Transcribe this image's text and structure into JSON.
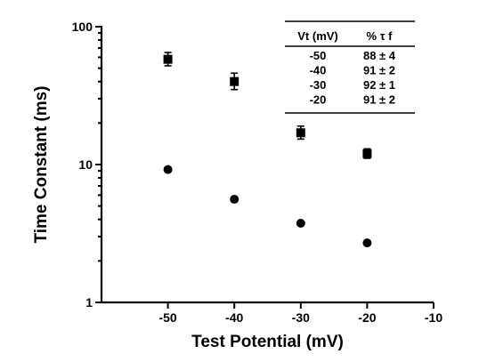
{
  "chart_data": {
    "type": "scatter",
    "xlabel": "Test Potential (mV)",
    "ylabel": "Time Constant (ms)",
    "xlim": [
      -60,
      -10
    ],
    "ylim": [
      1,
      100
    ],
    "y_scale": "log",
    "x_ticks": [
      -50,
      -40,
      -30,
      -20,
      -10
    ],
    "y_ticks": [
      1,
      10,
      100
    ],
    "x_tick_labels": [
      "-50",
      "-40",
      "-30",
      "-20",
      "-10"
    ],
    "y_tick_labels": [
      "1",
      "10",
      "100"
    ],
    "grid": false,
    "series": [
      {
        "marker": "square",
        "x": [
          -50,
          -40,
          -30,
          -20
        ],
        "y": [
          58,
          40,
          17,
          12
        ],
        "y_err_low": [
          52,
          35,
          15.3,
          11.1
        ],
        "y_err_high": [
          65,
          46,
          19,
          13
        ]
      },
      {
        "marker": "circle",
        "x": [
          -50,
          -40,
          -30,
          -20
        ],
        "y": [
          9.2,
          5.6,
          3.75,
          2.7
        ]
      }
    ],
    "inset_table": {
      "headers": [
        "Vt (mV)",
        "% τ f"
      ],
      "rows": [
        [
          "-50",
          "88 ± 4"
        ],
        [
          "-40",
          "91 ± 2"
        ],
        [
          "-30",
          "92 ± 1"
        ],
        [
          "-20",
          "91 ± 2"
        ]
      ]
    }
  }
}
